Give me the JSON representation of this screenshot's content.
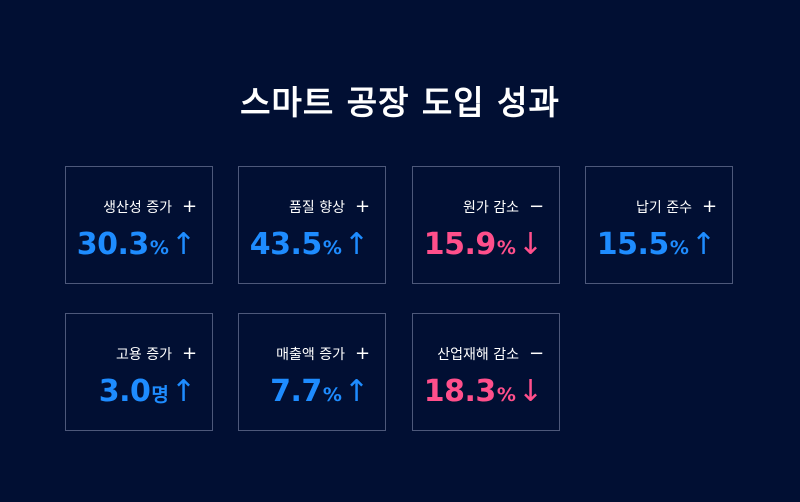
{
  "title": "스마트 공장 도입 성과",
  "colors": {
    "background": "#010f33",
    "increase": "#1e8cff",
    "decrease": "#ff4f8b",
    "border": "#4d587a"
  },
  "cards": [
    {
      "label": "생산성 증가",
      "sign": "+",
      "value": "30.3",
      "unit": "%",
      "arrow": "↑",
      "trend": "up"
    },
    {
      "label": "품질 향상",
      "sign": "+",
      "value": "43.5",
      "unit": "%",
      "arrow": "↑",
      "trend": "up"
    },
    {
      "label": "원가 감소",
      "sign": "−",
      "value": "15.9",
      "unit": "%",
      "arrow": "↓",
      "trend": "down"
    },
    {
      "label": "납기 준수",
      "sign": "+",
      "value": "15.5",
      "unit": "%",
      "arrow": "↑",
      "trend": "up"
    },
    {
      "label": "고용 증가",
      "sign": "+",
      "value": "3.0",
      "unit": "명",
      "arrow": "↑",
      "trend": "up"
    },
    {
      "label": "매출액 증가",
      "sign": "+",
      "value": "7.7",
      "unit": "%",
      "arrow": "↑",
      "trend": "up"
    },
    {
      "label": "산업재해 감소",
      "sign": "−",
      "value": "18.3",
      "unit": "%",
      "arrow": "↓",
      "trend": "down"
    }
  ]
}
